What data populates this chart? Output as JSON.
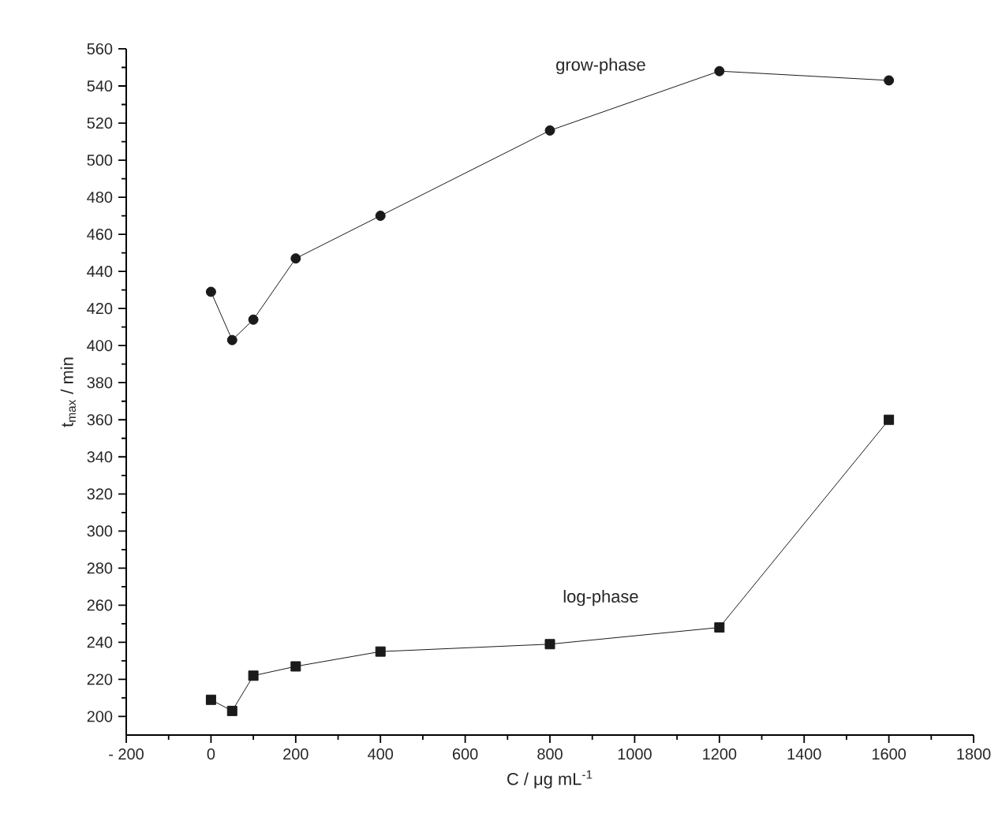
{
  "chart_data": {
    "type": "line",
    "xlabel": "C / μg mL$^{-1}$",
    "ylabel": "t$_{max}$ / min",
    "xlim": [
      -200,
      1800
    ],
    "ylim": [
      190,
      560
    ],
    "xticks": [
      {
        "value": -200,
        "label": "- 200"
      },
      0,
      200,
      400,
      600,
      800,
      1000,
      1200,
      1400,
      1600,
      1800
    ],
    "yticks": [
      200,
      220,
      240,
      260,
      280,
      300,
      320,
      340,
      360,
      380,
      400,
      420,
      440,
      460,
      480,
      500,
      520,
      540,
      560
    ],
    "x": [
      0,
      50,
      100,
      200,
      400,
      800,
      1200,
      1600
    ],
    "series": [
      {
        "name": "grow-phase",
        "color": "#1a1a1a",
        "marker": "circle",
        "values": [
          429,
          403,
          414,
          447,
          470,
          516,
          548,
          543
        ]
      },
      {
        "name": "log-phase",
        "color": "#1a1a1a",
        "marker": "square",
        "values": [
          209,
          203,
          222,
          227,
          235,
          239,
          248,
          360
        ]
      }
    ],
    "grid": false,
    "legend": false,
    "line_style": "solid"
  }
}
